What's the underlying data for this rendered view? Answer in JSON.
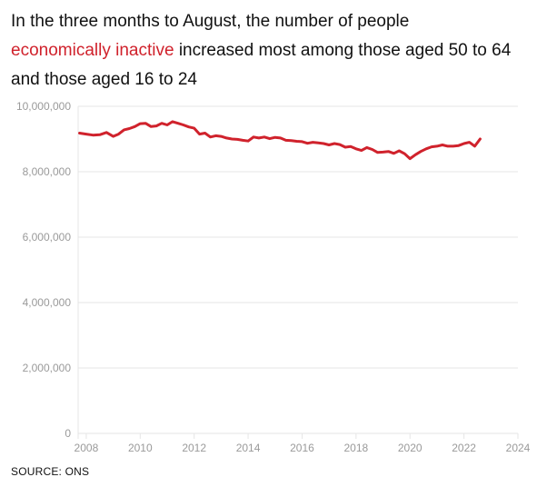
{
  "headline": {
    "before": "In the three months to August, the number of people",
    "highlight": "economically inactive",
    "after": "increased most among those aged 50 to 64 and those aged 16 to 24"
  },
  "source": "SOURCE: ONS",
  "colors": {
    "line": "#d0222c",
    "highlight": "#d0222c",
    "grid": "#e6e6e6",
    "tick": "#9a9a9a"
  },
  "chart_data": {
    "type": "line",
    "title": "",
    "xlabel": "",
    "ylabel": "",
    "xlim": [
      2007.7,
      2024
    ],
    "ylim": [
      0,
      10000000
    ],
    "grid": true,
    "x_ticks": [
      {
        "value": 2008,
        "label": "2008"
      },
      {
        "value": 2010,
        "label": "2010"
      },
      {
        "value": 2012,
        "label": "2012"
      },
      {
        "value": 2014,
        "label": "2014"
      },
      {
        "value": 2016,
        "label": "2016"
      },
      {
        "value": 2018,
        "label": "2018"
      },
      {
        "value": 2020,
        "label": "2020"
      },
      {
        "value": 2022,
        "label": "2022"
      },
      {
        "value": 2024,
        "label": "2024"
      }
    ],
    "y_ticks": [
      {
        "value": 0,
        "label": "0"
      },
      {
        "value": 2000000,
        "label": "2,000,000"
      },
      {
        "value": 4000000,
        "label": "4,000,000"
      },
      {
        "value": 6000000,
        "label": "6,000,000"
      },
      {
        "value": 8000000,
        "label": "8,000,000"
      },
      {
        "value": 10000000,
        "label": "10,000,000"
      }
    ],
    "series": [
      {
        "x": [
          2007.75,
          2008.0,
          2008.25,
          2008.5,
          2008.75,
          2009.0,
          2009.2,
          2009.4,
          2009.6,
          2009.8,
          2010.0,
          2010.2,
          2010.4,
          2010.6,
          2010.8,
          2011.0,
          2011.2,
          2011.4,
          2011.6,
          2011.8,
          2012.0,
          2012.2,
          2012.4,
          2012.6,
          2012.8,
          2013.0,
          2013.2,
          2013.4,
          2013.6,
          2013.8,
          2014.0,
          2014.2,
          2014.4,
          2014.6,
          2014.8,
          2015.0,
          2015.2,
          2015.4,
          2015.6,
          2015.8,
          2016.0,
          2016.2,
          2016.4,
          2016.6,
          2016.8,
          2017.0,
          2017.2,
          2017.4,
          2017.6,
          2017.8,
          2018.0,
          2018.2,
          2018.4,
          2018.6,
          2018.8,
          2019.0,
          2019.2,
          2019.4,
          2019.6,
          2019.8,
          2020.0,
          2020.2,
          2020.4,
          2020.6,
          2020.8,
          2021.0,
          2021.2,
          2021.4,
          2021.6,
          2021.8,
          2022.0,
          2022.2,
          2022.4,
          2022.6
        ],
        "values": [
          9180000,
          9150000,
          9120000,
          9130000,
          9200000,
          9080000,
          9150000,
          9280000,
          9320000,
          9380000,
          9470000,
          9480000,
          9380000,
          9400000,
          9480000,
          9430000,
          9530000,
          9480000,
          9430000,
          9370000,
          9330000,
          9150000,
          9180000,
          9060000,
          9100000,
          9080000,
          9030000,
          9000000,
          8990000,
          8960000,
          8940000,
          9060000,
          9030000,
          9060000,
          9010000,
          9050000,
          9030000,
          8960000,
          8950000,
          8930000,
          8920000,
          8870000,
          8900000,
          8880000,
          8860000,
          8820000,
          8860000,
          8830000,
          8750000,
          8770000,
          8700000,
          8650000,
          8740000,
          8680000,
          8590000,
          8600000,
          8620000,
          8560000,
          8640000,
          8550000,
          8400000,
          8520000,
          8620000,
          8700000,
          8760000,
          8780000,
          8820000,
          8780000,
          8780000,
          8800000,
          8860000,
          8900000,
          8780000,
          9000000
        ]
      }
    ]
  }
}
